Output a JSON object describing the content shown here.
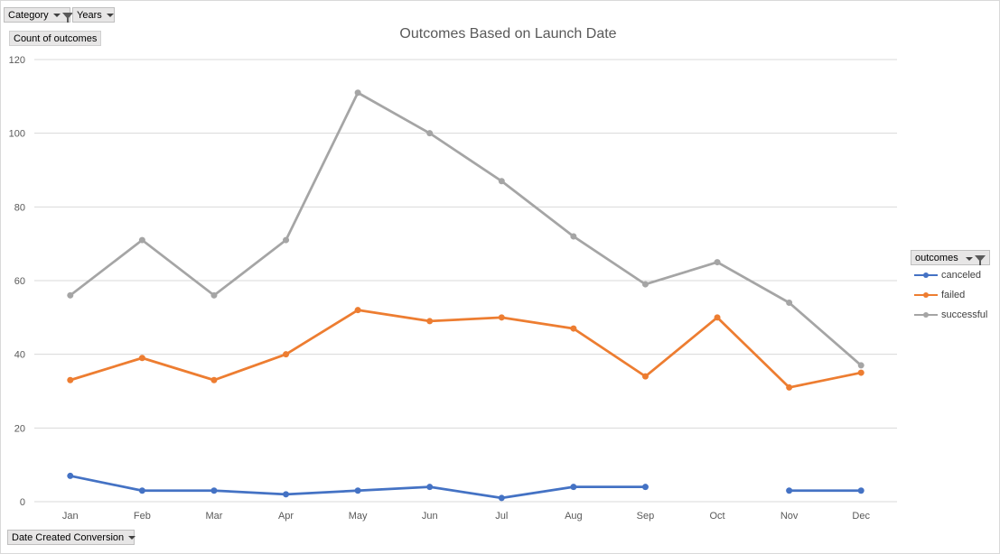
{
  "filters": {
    "category_label": "Category",
    "years_label": "Years",
    "value_field_label": "Count of outcomes",
    "axis_field_label": "Date Created Conversion"
  },
  "legend": {
    "header": "outcomes",
    "items": [
      {
        "label": "canceled",
        "color": "#4472c4"
      },
      {
        "label": "failed",
        "color": "#ed7d31"
      },
      {
        "label": "successful",
        "color": "#a5a5a5"
      }
    ]
  },
  "chart_data": {
    "type": "line",
    "title": "Outcomes Based on Launch Date",
    "xlabel": "",
    "ylabel": "",
    "categories": [
      "Jan",
      "Feb",
      "Mar",
      "Apr",
      "May",
      "Jun",
      "Jul",
      "Aug",
      "Sep",
      "Oct",
      "Nov",
      "Dec"
    ],
    "ylim": [
      0,
      120
    ],
    "yticks": [
      0,
      20,
      40,
      60,
      80,
      100,
      120
    ],
    "grid": true,
    "legend_position": "right",
    "series": [
      {
        "name": "canceled",
        "color": "#4472c4",
        "values": [
          7,
          3,
          3,
          2,
          3,
          4,
          1,
          4,
          4,
          null,
          3,
          3
        ]
      },
      {
        "name": "failed",
        "color": "#ed7d31",
        "values": [
          33,
          39,
          33,
          40,
          52,
          49,
          50,
          47,
          34,
          50,
          31,
          35
        ]
      },
      {
        "name": "successful",
        "color": "#a5a5a5",
        "values": [
          56,
          71,
          56,
          71,
          111,
          100,
          87,
          72,
          59,
          65,
          54,
          37
        ]
      }
    ]
  }
}
